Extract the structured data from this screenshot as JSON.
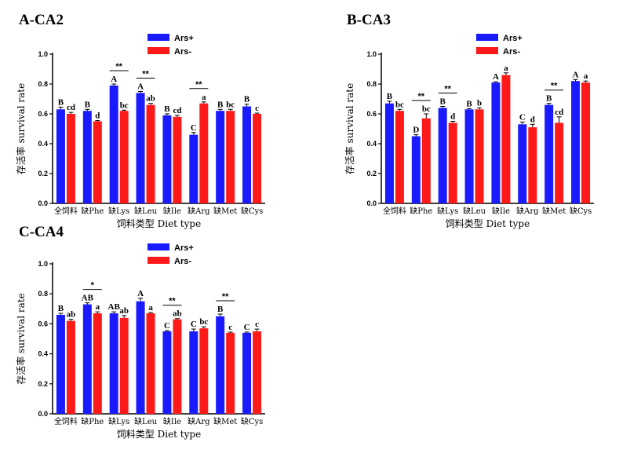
{
  "chart_data": [
    {
      "type": "bar",
      "title": "A-CA2",
      "ylabel": "存活率  survival rate",
      "xlabel": "饲料类型  Diet type",
      "ylim": [
        0,
        1.0
      ],
      "yticks": [
        "0.0",
        "0.2",
        "0.4",
        "0.6",
        "0.8",
        "1.0"
      ],
      "legend_position": "top-right",
      "colors": {
        "Ars+": "#1a1aff",
        "Ars-": "#ff1a1a"
      },
      "categories": [
        "全饲料",
        "缺Phe",
        "缺Lys",
        "缺Leu",
        "缺Ile",
        "缺Arg",
        "缺Met",
        "缺Cys"
      ],
      "series": [
        {
          "name": "Ars+",
          "values": [
            0.63,
            0.62,
            0.79,
            0.74,
            0.59,
            0.46,
            0.62,
            0.65
          ],
          "errors": [
            0.015,
            0.01,
            0.01,
            0.01,
            0.01,
            0.015,
            0.01,
            0.015
          ],
          "letters": [
            "B",
            "B",
            "A",
            "A",
            "B",
            "C",
            "B",
            "B"
          ]
        },
        {
          "name": "Ars-",
          "values": [
            0.6,
            0.55,
            0.62,
            0.66,
            0.58,
            0.67,
            0.62,
            0.6
          ],
          "errors": [
            0.01,
            0.005,
            0.005,
            0.01,
            0.01,
            0.01,
            0.01,
            0.005
          ],
          "letters": [
            "cd",
            "d",
            "bc",
            "ab",
            "cd",
            "a",
            "bc",
            "c"
          ]
        }
      ],
      "significance": [
        {
          "category": 2,
          "label": "**"
        },
        {
          "category": 3,
          "label": "**"
        },
        {
          "category": 5,
          "label": "**"
        }
      ]
    },
    {
      "type": "bar",
      "title": "B-CA3",
      "ylabel": "存活率  survival rate",
      "xlabel": "饲料类型  Diet type",
      "ylim": [
        0,
        1.0
      ],
      "yticks": [
        "0.0",
        "0.2",
        "0.4",
        "0.6",
        "0.8",
        "1.0"
      ],
      "legend_position": "top-right",
      "colors": {
        "Ars+": "#1a1aff",
        "Ars-": "#ff1a1a"
      },
      "categories": [
        "全饲料",
        "缺Phe",
        "缺Lys",
        "缺Leu",
        "缺Ile",
        "缺Arg",
        "缺Met",
        "缺Cys"
      ],
      "series": [
        {
          "name": "Ars+",
          "values": [
            0.67,
            0.45,
            0.64,
            0.63,
            0.81,
            0.53,
            0.66,
            0.82
          ],
          "errors": [
            0.015,
            0.01,
            0.01,
            0.005,
            0.005,
            0.015,
            0.01,
            0.01
          ],
          "letters": [
            "B",
            "D",
            "B",
            "B",
            "A",
            "C",
            "B",
            "A"
          ]
        },
        {
          "name": "Ars-",
          "values": [
            0.62,
            0.57,
            0.54,
            0.63,
            0.86,
            0.51,
            0.54,
            0.81
          ],
          "errors": [
            0.01,
            0.03,
            0.01,
            0.01,
            0.015,
            0.02,
            0.04,
            0.01
          ],
          "letters": [
            "bc",
            "bc",
            "d",
            "b",
            "a",
            "d",
            "cd",
            "a"
          ]
        }
      ],
      "significance": [
        {
          "category": 1,
          "label": "**"
        },
        {
          "category": 2,
          "label": "**"
        },
        {
          "category": 6,
          "label": "**"
        }
      ]
    },
    {
      "type": "bar",
      "title": "C-CA4",
      "ylabel": "存活率  survival rate",
      "xlabel": "饲料类型  Diet type",
      "ylim": [
        0,
        1.0
      ],
      "yticks": [
        "0.0",
        "0.2",
        "0.4",
        "0.6",
        "0.8",
        "1.0"
      ],
      "legend_position": "top-right",
      "colors": {
        "Ars+": "#1a1aff",
        "Ars-": "#ff1a1a"
      },
      "categories": [
        "全饲料",
        "缺Phe",
        "缺Lys",
        "缺Leu",
        "缺Ile",
        "缺Arg",
        "缺Met",
        "缺Cys"
      ],
      "series": [
        {
          "name": "Ars+",
          "values": [
            0.66,
            0.73,
            0.67,
            0.75,
            0.55,
            0.55,
            0.65,
            0.54
          ],
          "errors": [
            0.01,
            0.01,
            0.01,
            0.02,
            0.005,
            0.015,
            0.015,
            0.005
          ],
          "letters": [
            "B",
            "AB",
            "AB",
            "A",
            "C",
            "C",
            "B",
            "C"
          ]
        },
        {
          "name": "Ars-",
          "values": [
            0.62,
            0.67,
            0.64,
            0.67,
            0.63,
            0.57,
            0.54,
            0.55
          ],
          "errors": [
            0.01,
            0.01,
            0.015,
            0.005,
            0.005,
            0.01,
            0.005,
            0.015
          ],
          "letters": [
            "ab",
            "a",
            "ab",
            "a",
            "ab",
            "bc",
            "c",
            "c"
          ]
        }
      ],
      "significance": [
        {
          "category": 1,
          "label": "*"
        },
        {
          "category": 4,
          "label": "**"
        },
        {
          "category": 6,
          "label": "**"
        }
      ]
    }
  ]
}
